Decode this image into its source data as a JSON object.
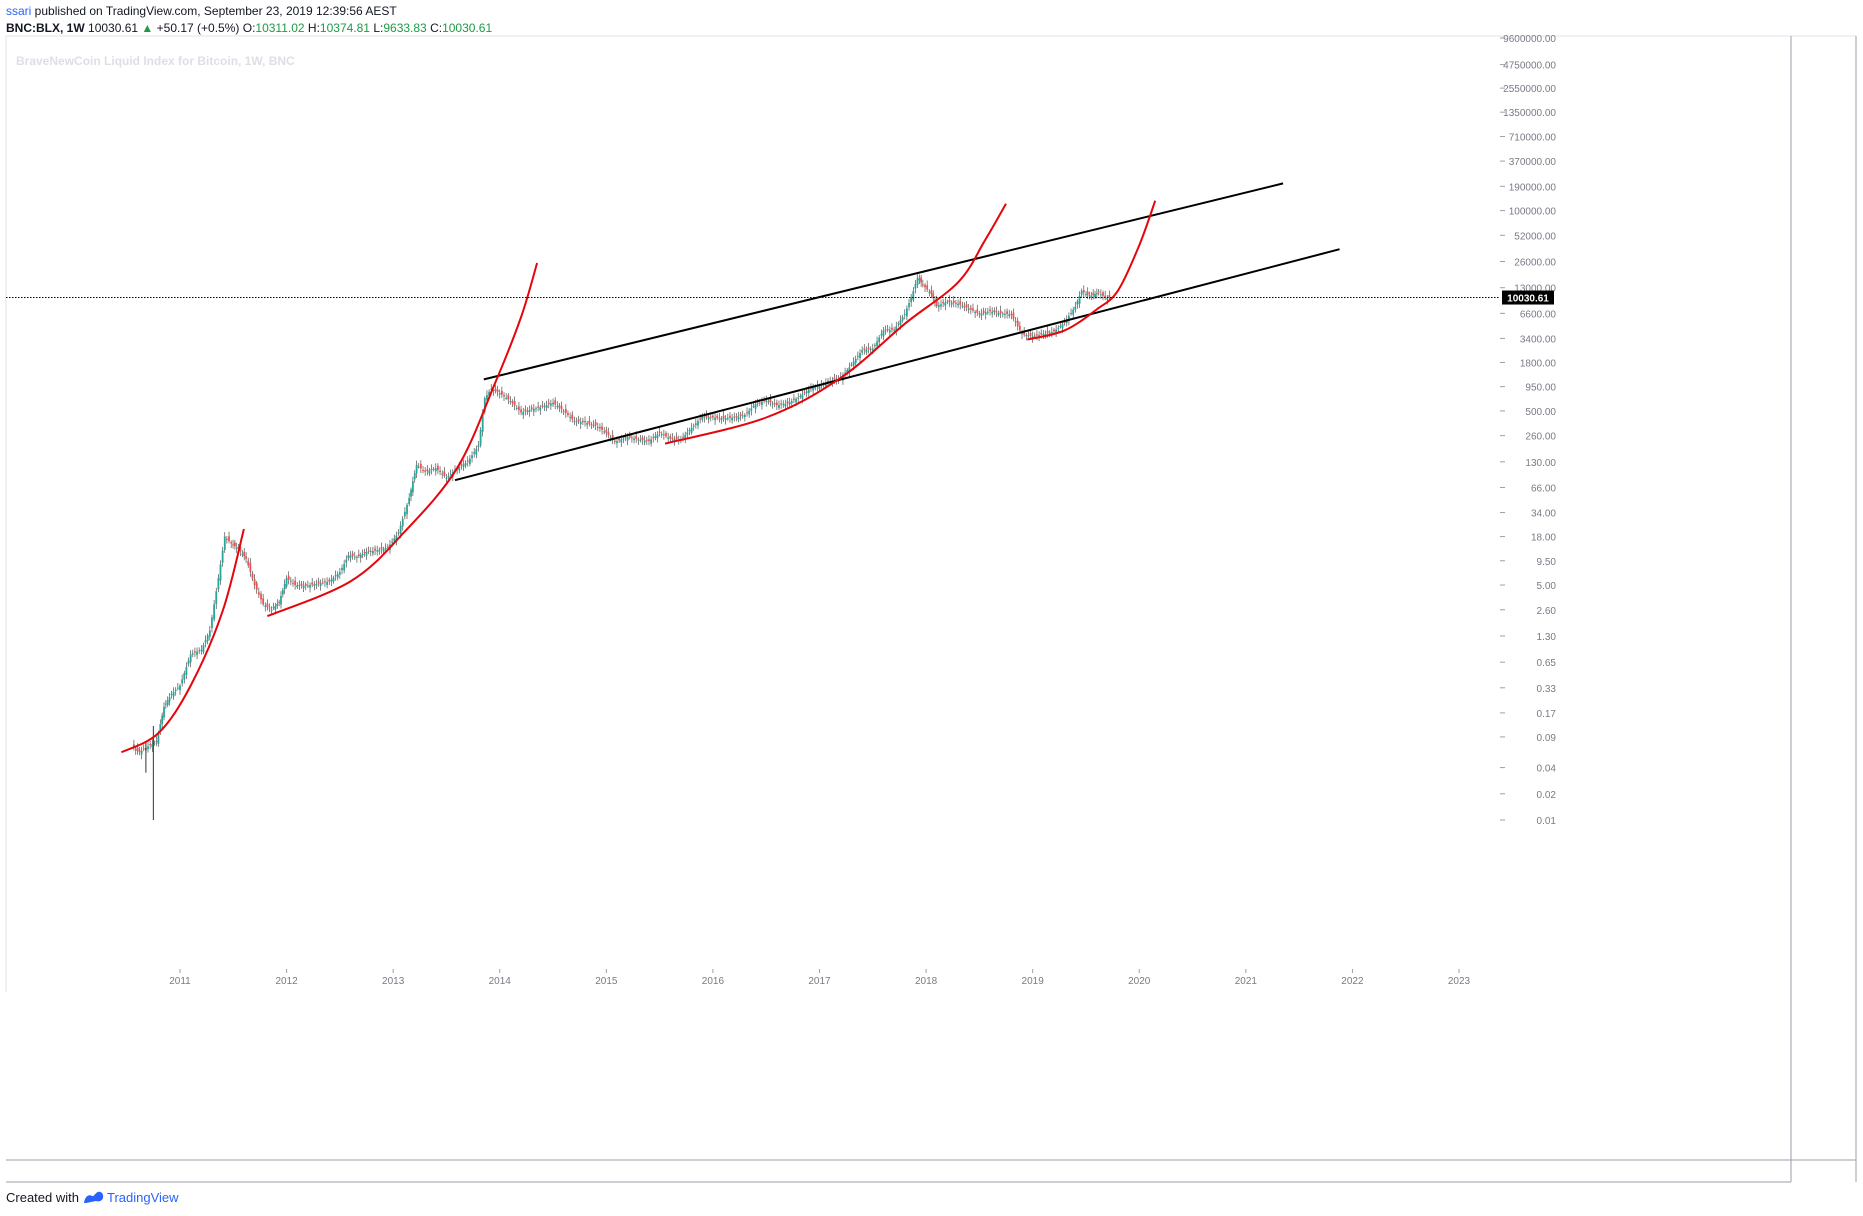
{
  "header": {
    "user": "ssari",
    "published_text": " published on TradingView.com, September 23, 2019 12:39:56 AEST",
    "symbol": "BNC:BLX, 1W",
    "last": "10030.61",
    "change_arrow": "▲",
    "change": "+50.17 (+0.5%)",
    "o_label": "O:",
    "o_value": "10311.02",
    "h_label": "H:",
    "h_value": "10374.81",
    "l_label": "L:",
    "l_value": "9633.83",
    "c_label": "C:",
    "c_value": "10030.61"
  },
  "footer": {
    "created_with": "Created with",
    "brand": "TradingView",
    "logo_icon": "tradingview-logo-icon"
  },
  "colors": {
    "up": "#26a69a",
    "down": "#ef5350",
    "curve": "#e4060c",
    "channel": "#000000",
    "last_price_bg": "#000000",
    "text": "#131722",
    "axis_text": "#787b86",
    "watermark": "#dcdfe6"
  },
  "chart_data": {
    "type": "candlestick",
    "title": "BraveNewCoin Liquid Index for Bitcoin, 1W, BNC",
    "yscale": "log",
    "price_ticks": [
      "9600000.00",
      "4750000.00",
      "2550000.00",
      "1350000.00",
      "710000.00",
      "370000.00",
      "190000.00",
      "100000.00",
      "52000.00",
      "26000.00",
      "13000.00",
      "6600.00",
      "3400.00",
      "1800.00",
      "950.00",
      "500.00",
      "260.00",
      "130.00",
      "66.00",
      "34.00",
      "18.00",
      "9.50",
      "5.00",
      "2.60",
      "1.30",
      "0.65",
      "0.33",
      "0.17",
      "0.09",
      "0.04",
      "0.02",
      "0.01"
    ],
    "time_ticks": [
      "2011",
      "2012",
      "2013",
      "2014",
      "2015",
      "2016",
      "2017",
      "2018",
      "2019",
      "2020",
      "2021",
      "2022",
      "2023"
    ],
    "last_price_label": "10030.61",
    "last_price": 10030.61,
    "price_series": [
      [
        "2010.55",
        0.07
      ],
      [
        "2010.62",
        0.06
      ],
      [
        "2010.70",
        0.07
      ],
      [
        "2010.78",
        0.08
      ],
      [
        "2010.85",
        0.2
      ],
      [
        "2010.92",
        0.28
      ],
      [
        "2011.00",
        0.35
      ],
      [
        "2011.10",
        0.8
      ],
      [
        "2011.20",
        0.9
      ],
      [
        "2011.28",
        1.5
      ],
      [
        "2011.36",
        6.0
      ],
      [
        "2011.42",
        18.0
      ],
      [
        "2011.48",
        15.0
      ],
      [
        "2011.55",
        13.0
      ],
      [
        "2011.62",
        10.0
      ],
      [
        "2011.70",
        5.0
      ],
      [
        "2011.78",
        3.0
      ],
      [
        "2011.86",
        2.6
      ],
      [
        "2011.93",
        3.2
      ],
      [
        "2012.00",
        6.0
      ],
      [
        "2012.08",
        5.0
      ],
      [
        "2012.18",
        4.9
      ],
      [
        "2012.30",
        5.2
      ],
      [
        "2012.40",
        5.5
      ],
      [
        "2012.50",
        7.0
      ],
      [
        "2012.58",
        11.0
      ],
      [
        "2012.66",
        10.5
      ],
      [
        "2012.75",
        12.0
      ],
      [
        "2012.85",
        12.5
      ],
      [
        "2012.95",
        13.5
      ],
      [
        "2013.05",
        20.0
      ],
      [
        "2013.15",
        50.0
      ],
      [
        "2013.22",
        120.0
      ],
      [
        "2013.30",
        100.0
      ],
      [
        "2013.40",
        110.0
      ],
      [
        "2013.50",
        85.0
      ],
      [
        "2013.60",
        110.0
      ],
      [
        "2013.70",
        130.0
      ],
      [
        "2013.80",
        200.0
      ],
      [
        "2013.86",
        700.0
      ],
      [
        "2013.92",
        900.0
      ],
      [
        "2014.00",
        800.0
      ],
      [
        "2014.10",
        650.0
      ],
      [
        "2014.20",
        480.0
      ],
      [
        "2014.30",
        520.0
      ],
      [
        "2014.40",
        560.0
      ],
      [
        "2014.50",
        620.0
      ],
      [
        "2014.60",
        500.0
      ],
      [
        "2014.70",
        380.0
      ],
      [
        "2014.80",
        370.0
      ],
      [
        "2014.90",
        340.0
      ],
      [
        "2015.00",
        280.0
      ],
      [
        "2015.08",
        220.0
      ],
      [
        "2015.20",
        250.0
      ],
      [
        "2015.30",
        235.0
      ],
      [
        "2015.40",
        225.0
      ],
      [
        "2015.50",
        280.0
      ],
      [
        "2015.60",
        240.0
      ],
      [
        "2015.70",
        235.0
      ],
      [
        "2015.80",
        320.0
      ],
      [
        "2015.90",
        430.0
      ],
      [
        "2016.00",
        420.0
      ],
      [
        "2016.10",
        410.0
      ],
      [
        "2016.20",
        420.0
      ],
      [
        "2016.30",
        450.0
      ],
      [
        "2016.40",
        600.0
      ],
      [
        "2016.50",
        660.0
      ],
      [
        "2016.60",
        580.0
      ],
      [
        "2016.70",
        610.0
      ],
      [
        "2016.80",
        710.0
      ],
      [
        "2016.90",
        880.0
      ],
      [
        "2017.00",
        970.0
      ],
      [
        "2017.10",
        1100.0
      ],
      [
        "2017.20",
        1200.0
      ],
      [
        "2017.30",
        1700.0
      ],
      [
        "2017.40",
        2500.0
      ],
      [
        "2017.50",
        2600.0
      ],
      [
        "2017.60",
        4200.0
      ],
      [
        "2017.70",
        4300.0
      ],
      [
        "2017.80",
        6500.0
      ],
      [
        "2017.86",
        10000.0
      ],
      [
        "2017.92",
        17000.0
      ],
      [
        "2017.97",
        14000.0
      ],
      [
        "2018.05",
        11000.0
      ],
      [
        "2018.10",
        8000.0
      ],
      [
        "2018.20",
        9000.0
      ],
      [
        "2018.30",
        8500.0
      ],
      [
        "2018.40",
        7500.0
      ],
      [
        "2018.50",
        6500.0
      ],
      [
        "2018.60",
        7000.0
      ],
      [
        "2018.70",
        6600.0
      ],
      [
        "2018.80",
        6400.0
      ],
      [
        "2018.90",
        3800.0
      ],
      [
        "2019.00",
        3600.0
      ],
      [
        "2019.10",
        3800.0
      ],
      [
        "2019.20",
        4100.0
      ],
      [
        "2019.30",
        5200.0
      ],
      [
        "2019.40",
        7900.0
      ],
      [
        "2019.46",
        12000.0
      ],
      [
        "2019.50",
        11000.0
      ],
      [
        "2019.55",
        10500.0
      ],
      [
        "2019.62",
        11500.0
      ],
      [
        "2019.68",
        10000.0
      ],
      [
        "2019.72",
        10030.61
      ]
    ],
    "lines": [
      {
        "name": "",
        "kind": "channel-upper",
        "points": [
          [
            "2013.85",
            1150.0
          ],
          [
            "2021.35",
            205000.0
          ]
        ]
      },
      {
        "name": "",
        "kind": "channel-lower",
        "points": [
          [
            "2013.58",
            80.0
          ],
          [
            "2021.88",
            36000.0
          ]
        ]
      },
      {
        "name": "",
        "kind": "parabolic-curve",
        "points": [
          [
            "2010.45",
            0.06
          ],
          [
            "2010.80",
            0.1
          ],
          [
            "2011.10",
            0.35
          ],
          [
            "2011.40",
            2.5
          ],
          [
            "2011.60",
            22.0
          ]
        ]
      },
      {
        "name": "",
        "kind": "parabolic-curve",
        "points": [
          [
            "2011.82",
            2.2
          ],
          [
            "2012.60",
            5.5
          ],
          [
            "2013.10",
            20.0
          ],
          [
            "2013.60",
            110.0
          ],
          [
            "2013.95",
            1000.0
          ],
          [
            "2014.20",
            6000.0
          ],
          [
            "2014.35",
            25000.0
          ]
        ]
      },
      {
        "name": "",
        "kind": "parabolic-curve",
        "points": [
          [
            "2015.55",
            210.0
          ],
          [
            "2016.50",
            420.0
          ],
          [
            "2017.20",
            1200.0
          ],
          [
            "2017.80",
            5000.0
          ],
          [
            "2018.30",
            15000.0
          ],
          [
            "2018.55",
            45000.0
          ],
          [
            "2018.75",
            120000.0
          ]
        ]
      },
      {
        "name": "",
        "kind": "parabolic-curve",
        "points": [
          [
            "2018.95",
            3300.0
          ],
          [
            "2019.30",
            4200.0
          ],
          [
            "2019.60",
            7300.0
          ],
          [
            "2019.80",
            12000.0
          ],
          [
            "2020.00",
            40000.0
          ],
          [
            "2020.15",
            130000.0
          ]
        ]
      }
    ]
  }
}
